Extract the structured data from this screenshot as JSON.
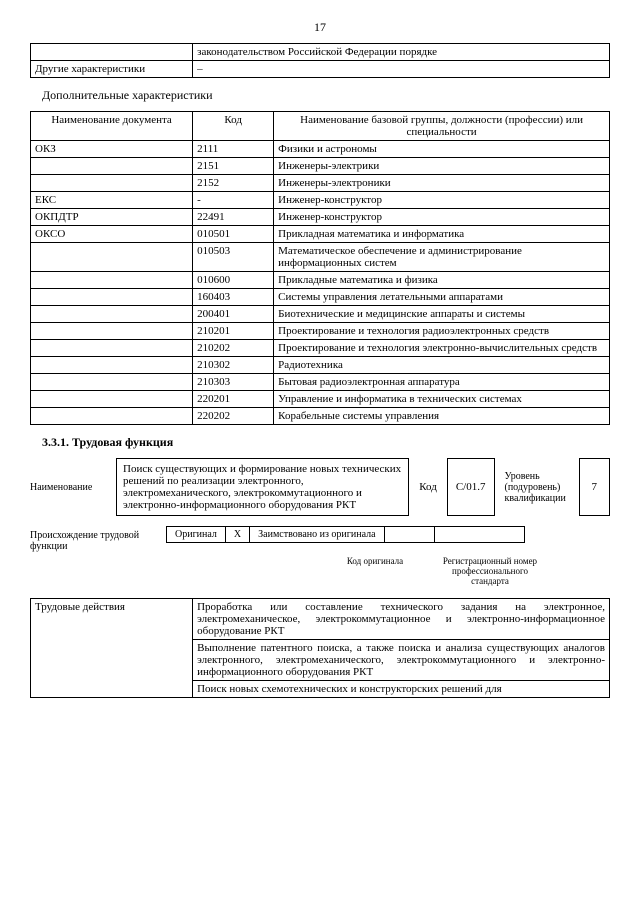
{
  "page_number": "17",
  "top_table": {
    "r1c1": "",
    "r1c2": "законодательством Российской Федерации порядке",
    "r2c1": "Другие характеристики",
    "r2c2": "–"
  },
  "additional_title": "Дополнительные характеристики",
  "char_table": {
    "headers": [
      "Наименование документа",
      "Код",
      "Наименование базовой группы, должности (профессии) или специальности"
    ],
    "rows": [
      [
        "ОКЗ",
        "2111",
        "Физики и астрономы"
      ],
      [
        "",
        "2151",
        "Инженеры-электрики"
      ],
      [
        "",
        "2152",
        "Инженеры-электроники"
      ],
      [
        "ЕКС",
        "-",
        "Инженер-конструктор"
      ],
      [
        "ОКПДТР",
        "22491",
        "Инженер-конструктор"
      ],
      [
        "ОКСО",
        "010501",
        "Прикладная математика и информатика"
      ],
      [
        "",
        "010503",
        "Математическое обеспечение и администрирование информационных систем"
      ],
      [
        "",
        "010600",
        "Прикладные математика и физика"
      ],
      [
        "",
        "160403",
        "Системы управления летательными аппаратами"
      ],
      [
        "",
        "200401",
        "Биотехнические и медицинские аппараты и системы"
      ],
      [
        "",
        "210201",
        "Проектирование и технология радиоэлектронных средств"
      ],
      [
        "",
        "210202",
        "Проектирование и технология электронно-вычислительных средств"
      ],
      [
        "",
        "210302",
        "Радиотехника"
      ],
      [
        "",
        "210303",
        "Бытовая радиоэлектронная аппаратура"
      ],
      [
        "",
        "220201",
        "Управление и информатика в технических системах"
      ],
      [
        "",
        "220202",
        "Корабельные системы управления"
      ]
    ]
  },
  "section331": "3.3.1. Трудовая функция",
  "func": {
    "name_label": "Наименование",
    "name_text": "Поиск существующих и формирование новых технических решений по реализации электронного, электромеханического, электрокоммутационного и электронно-информационного оборудования РКТ",
    "kod_label": "Код",
    "kod_value": "C/01.7",
    "level_label": "Уровень (подуровень) квалификации",
    "level_value": "7"
  },
  "origin": {
    "label": "Происхождение трудовой функции",
    "original": "Оригинал",
    "x": "X",
    "borrowed": "Заимствовано из оригинала",
    "blank1": "",
    "blank2": "",
    "sub1": "Код оригинала",
    "sub2": "Регистрационный номер профессионального стандарта"
  },
  "actions_table": {
    "header": "Трудовые действия",
    "r1": "Проработка или составление технического задания на электронное, электромеханическое, электрокоммутационное и электронно-информационное оборудование РКТ",
    "r2": "Выполнение патентного поиска, а также поиска и анализа существующих аналогов электронного, электромеханического, электрокоммутационного и электронно-информационного оборудования РКТ",
    "r3": "Поиск новых схемотехнических и конструкторских решений для"
  }
}
